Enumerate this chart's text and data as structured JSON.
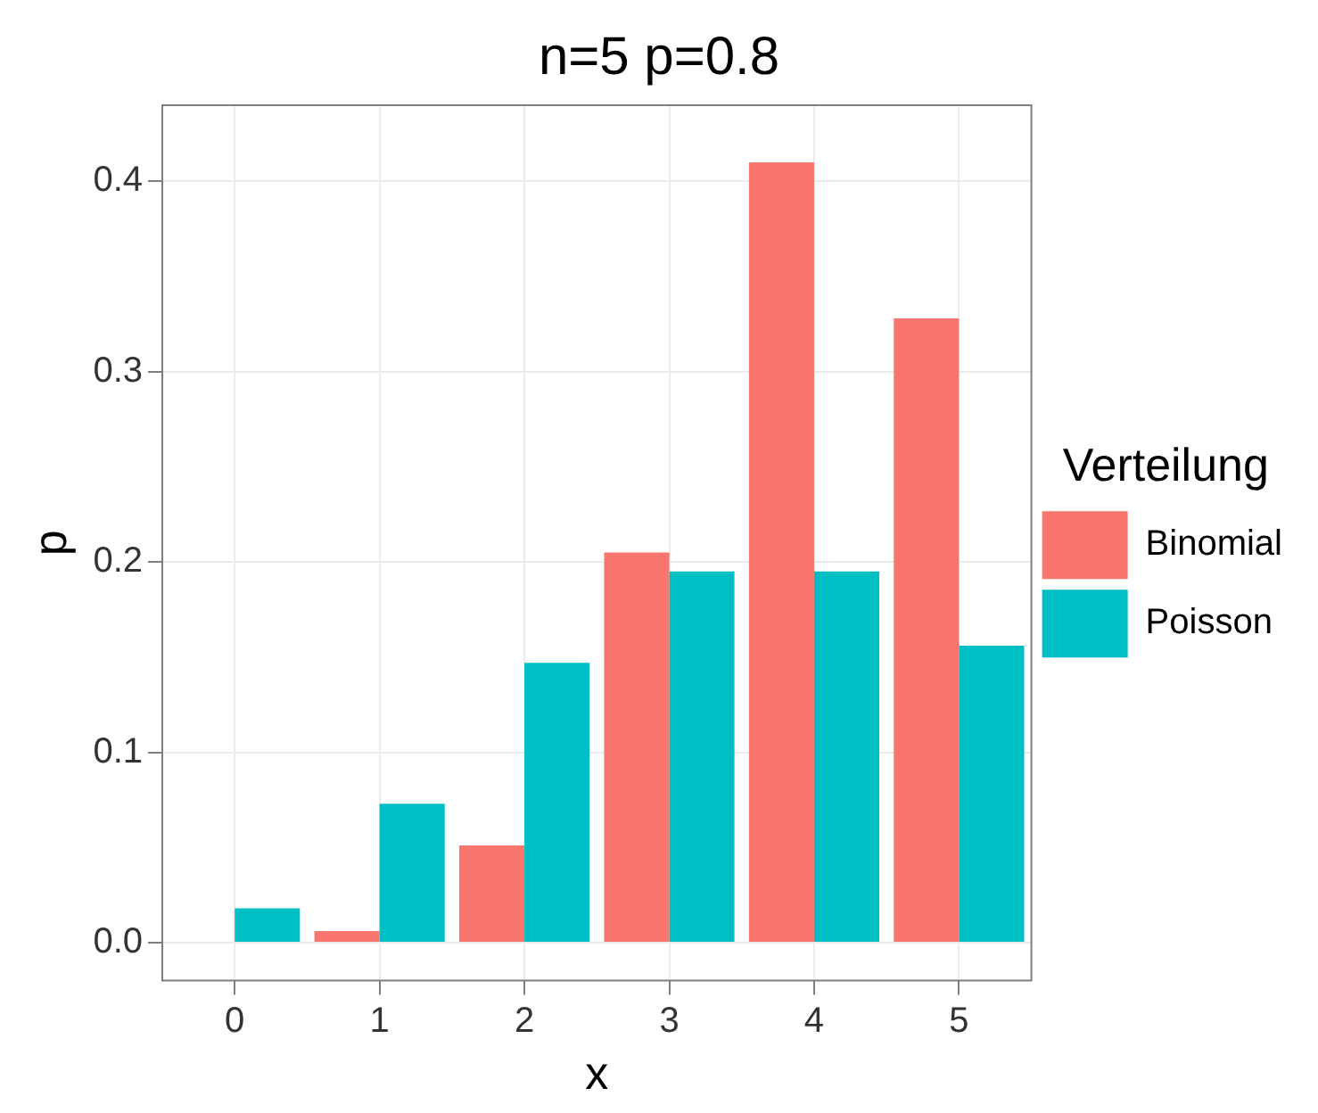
{
  "chart_data": {
    "type": "bar",
    "title": "n=5 p=0.8",
    "xlabel": "x",
    "ylabel": "p",
    "legend_title": "Verteilung",
    "categories": [
      "0",
      "1",
      "2",
      "3",
      "4",
      "5"
    ],
    "series": [
      {
        "name": "Binomial",
        "color": "#f8766d",
        "values": [
          0,
          0.006,
          0.051,
          0.205,
          0.41,
          0.328
        ]
      },
      {
        "name": "Poisson",
        "color": "#00bfc4",
        "values": [
          0.018,
          0.073,
          0.147,
          0.195,
          0.195,
          0.156
        ]
      }
    ],
    "ylim": [
      -0.02,
      0.44
    ],
    "yticks": [
      {
        "value": 0,
        "label": "0.0"
      },
      {
        "value": 0.1,
        "label": "0.1"
      },
      {
        "value": 0.2,
        "label": "0.2"
      },
      {
        "value": 0.3,
        "label": "0.3"
      },
      {
        "value": 0.4,
        "label": "0.4"
      }
    ],
    "grid": true,
    "legend": "right"
  }
}
